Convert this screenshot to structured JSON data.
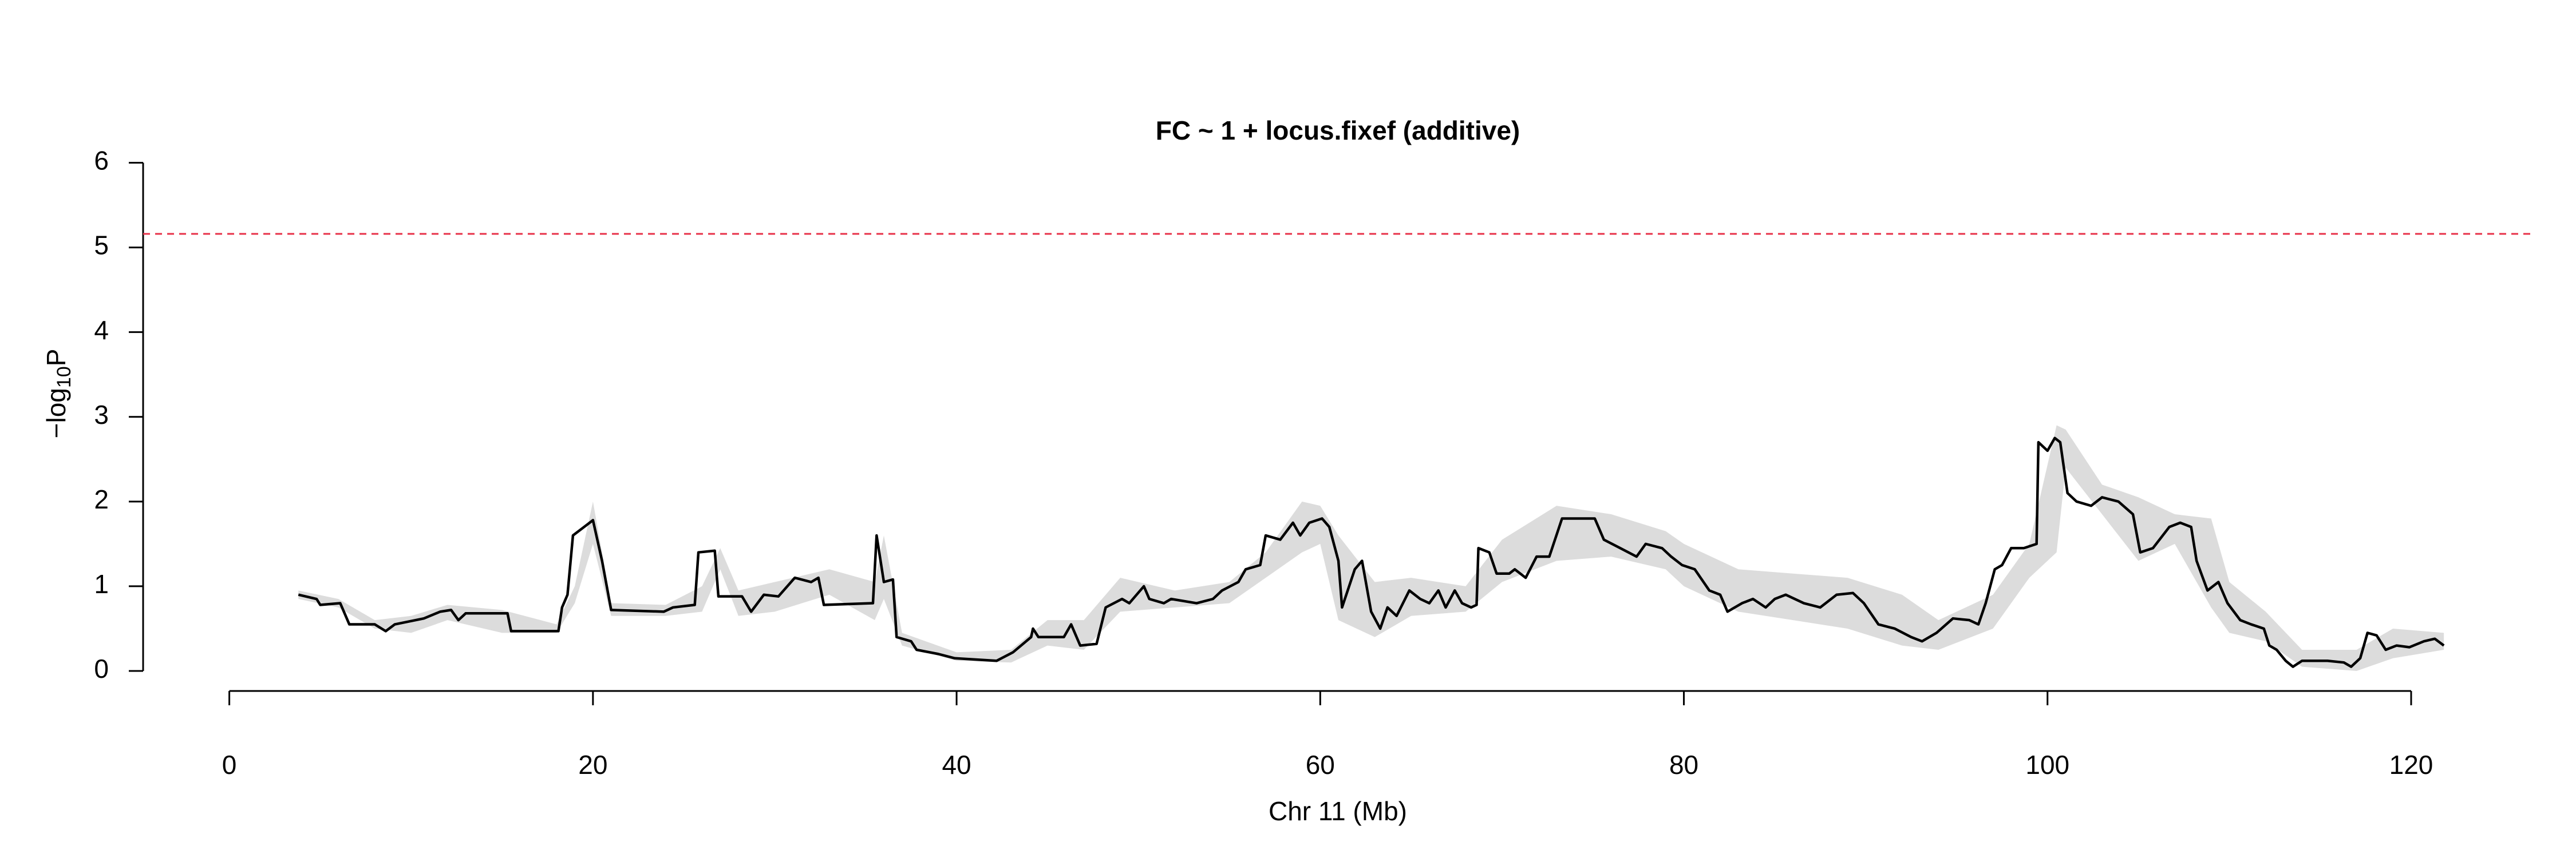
{
  "chart_data": {
    "type": "line",
    "title": "FC ~ 1 + locus.fixef (additive)",
    "xlabel": "Chr 11 (Mb)",
    "ylabel_parts": [
      "−log",
      "10",
      "P"
    ],
    "xlim": [
      0,
      120
    ],
    "xticks": [
      0,
      20,
      40,
      60,
      80,
      100,
      120
    ],
    "ylim": [
      0,
      6
    ],
    "yticks": [
      0,
      1,
      2,
      3,
      4,
      5,
      6
    ],
    "threshold": {
      "value": 5.16,
      "color": "#e8334a"
    },
    "band": {
      "color": "#dcdcdc",
      "x": [
        3.8,
        6,
        8,
        10,
        12,
        15,
        18,
        19,
        20,
        21,
        24,
        26,
        27,
        28,
        30,
        33,
        35.5,
        36,
        37,
        40,
        43,
        45,
        47,
        49,
        52,
        55,
        57,
        59,
        60,
        61,
        63,
        65,
        68,
        70,
        73,
        76,
        79,
        80,
        83,
        86,
        89,
        92,
        94,
        97,
        99,
        100.5,
        101,
        103,
        105,
        107,
        109,
        110,
        112,
        114,
        117,
        119,
        121.8
      ],
      "lower": [
        0.85,
        0.75,
        0.5,
        0.45,
        0.6,
        0.45,
        0.45,
        0.8,
        1.5,
        0.65,
        0.65,
        0.7,
        1.2,
        0.65,
        0.7,
        0.9,
        0.6,
        0.85,
        0.3,
        0.12,
        0.1,
        0.3,
        0.25,
        0.7,
        0.75,
        0.8,
        1.1,
        1.4,
        1.5,
        0.6,
        0.4,
        0.65,
        0.7,
        1.05,
        1.3,
        1.35,
        1.2,
        1.0,
        0.7,
        0.6,
        0.5,
        0.3,
        0.25,
        0.5,
        1.1,
        1.4,
        2.4,
        1.85,
        1.3,
        1.5,
        0.75,
        0.45,
        0.35,
        0.05,
        0.0,
        0.15,
        0.25
      ],
      "upper": [
        0.95,
        0.85,
        0.6,
        0.65,
        0.78,
        0.72,
        0.55,
        1.0,
        2.0,
        0.8,
        0.78,
        1.0,
        1.45,
        0.95,
        1.05,
        1.2,
        1.05,
        1.6,
        0.45,
        0.22,
        0.25,
        0.6,
        0.6,
        1.1,
        0.95,
        1.05,
        1.4,
        2.0,
        1.95,
        1.6,
        1.05,
        1.1,
        1.0,
        1.55,
        1.95,
        1.85,
        1.65,
        1.5,
        1.2,
        1.15,
        1.1,
        0.9,
        0.6,
        0.9,
        1.5,
        2.9,
        2.85,
        2.2,
        2.05,
        1.85,
        1.8,
        1.05,
        0.7,
        0.25,
        0.25,
        0.5,
        0.45
      ]
    },
    "color": "#000000",
    "x": [
      3.8,
      4.8,
      5.0,
      6.1,
      6.6,
      8.0,
      8.6,
      9.1,
      10.7,
      11.6,
      12.2,
      12.6,
      13.0,
      15.3,
      15.5,
      18.1,
      18.3,
      18.6,
      18.9,
      20.0,
      20.5,
      21.0,
      23.9,
      24.4,
      25.6,
      25.8,
      26.7,
      26.9,
      28.2,
      28.7,
      29.4,
      30.2,
      31.1,
      32.0,
      32.4,
      32.7,
      35.4,
      35.6,
      36.0,
      36.5,
      36.7,
      37.5,
      37.8,
      39.0,
      39.9,
      42.2,
      43.1,
      44.1,
      44.2,
      44.5,
      45.9,
      46.3,
      46.8,
      47.7,
      48.2,
      49.1,
      49.5,
      50.3,
      50.6,
      51.4,
      51.8,
      53.2,
      54.1,
      54.6,
      55.5,
      55.9,
      56.7,
      57.0,
      57.8,
      58.5,
      58.9,
      59.4,
      60.1,
      60.5,
      61.0,
      61.2,
      61.9,
      62.3,
      62.8,
      63.3,
      63.7,
      64.2,
      64.9,
      65.5,
      66.0,
      66.5,
      66.9,
      67.4,
      67.8,
      68.3,
      68.6,
      68.7,
      69.3,
      69.7,
      70.4,
      70.7,
      71.3,
      71.9,
      72.6,
      73.3,
      75.1,
      75.6,
      76.5,
      77.4,
      77.9,
      78.8,
      79.3,
      79.9,
      80.6,
      81.4,
      82.0,
      82.4,
      83.2,
      83.8,
      84.5,
      85.0,
      85.6,
      86.6,
      87.5,
      88.4,
      89.3,
      89.9,
      90.7,
      91.6,
      92.5,
      93.1,
      93.9,
      94.8,
      95.7,
      96.2,
      96.6,
      97.1,
      97.5,
      98.0,
      98.7,
      99.4,
      99.5,
      100.0,
      100.4,
      100.7,
      101.1,
      101.6,
      102.4,
      103.0,
      103.9,
      104.7,
      105.1,
      105.8,
      106.7,
      107.3,
      107.9,
      108.2,
      108.8,
      109.4,
      109.9,
      110.6,
      111.2,
      111.9,
      112.2,
      112.6,
      113.1,
      113.5,
      114.0,
      115.4,
      116.3,
      116.7,
      117.2,
      117.6,
      118.1,
      118.6,
      119.2,
      119.9,
      120.7,
      121.3,
      121.8
    ],
    "values": [
      0.9,
      0.85,
      0.78,
      0.8,
      0.55,
      0.55,
      0.47,
      0.55,
      0.62,
      0.7,
      0.72,
      0.6,
      0.68,
      0.68,
      0.47,
      0.47,
      0.75,
      0.9,
      1.6,
      1.78,
      1.3,
      0.72,
      0.7,
      0.75,
      0.78,
      1.4,
      1.42,
      0.88,
      0.88,
      0.7,
      0.9,
      0.88,
      1.1,
      1.05,
      1.1,
      0.78,
      0.8,
      1.6,
      1.05,
      1.08,
      0.4,
      0.35,
      0.25,
      0.2,
      0.15,
      0.12,
      0.22,
      0.4,
      0.5,
      0.4,
      0.4,
      0.55,
      0.3,
      0.32,
      0.75,
      0.85,
      0.8,
      1.0,
      0.85,
      0.8,
      0.85,
      0.8,
      0.85,
      0.95,
      1.05,
      1.2,
      1.25,
      1.6,
      1.55,
      1.75,
      1.6,
      1.75,
      1.8,
      1.7,
      1.3,
      0.75,
      1.2,
      1.3,
      0.7,
      0.5,
      0.75,
      0.65,
      0.95,
      0.85,
      0.8,
      0.95,
      0.75,
      0.95,
      0.8,
      0.75,
      0.78,
      1.45,
      1.4,
      1.15,
      1.15,
      1.2,
      1.1,
      1.35,
      1.35,
      1.8,
      1.8,
      1.55,
      1.45,
      1.35,
      1.5,
      1.45,
      1.35,
      1.25,
      1.2,
      0.95,
      0.9,
      0.7,
      0.8,
      0.85,
      0.75,
      0.85,
      0.9,
      0.8,
      0.75,
      0.9,
      0.92,
      0.8,
      0.55,
      0.5,
      0.4,
      0.35,
      0.45,
      0.62,
      0.6,
      0.55,
      0.8,
      1.2,
      1.25,
      1.45,
      1.45,
      1.5,
      2.7,
      2.6,
      2.75,
      2.7,
      2.1,
      2.0,
      1.95,
      2.05,
      2.0,
      1.85,
      1.4,
      1.45,
      1.7,
      1.75,
      1.7,
      1.3,
      0.95,
      1.05,
      0.8,
      0.6,
      0.55,
      0.5,
      0.3,
      0.25,
      0.12,
      0.05,
      0.12,
      0.12,
      0.1,
      0.05,
      0.15,
      0.45,
      0.42,
      0.25,
      0.3,
      0.28,
      0.35,
      0.38,
      0.3
    ]
  }
}
